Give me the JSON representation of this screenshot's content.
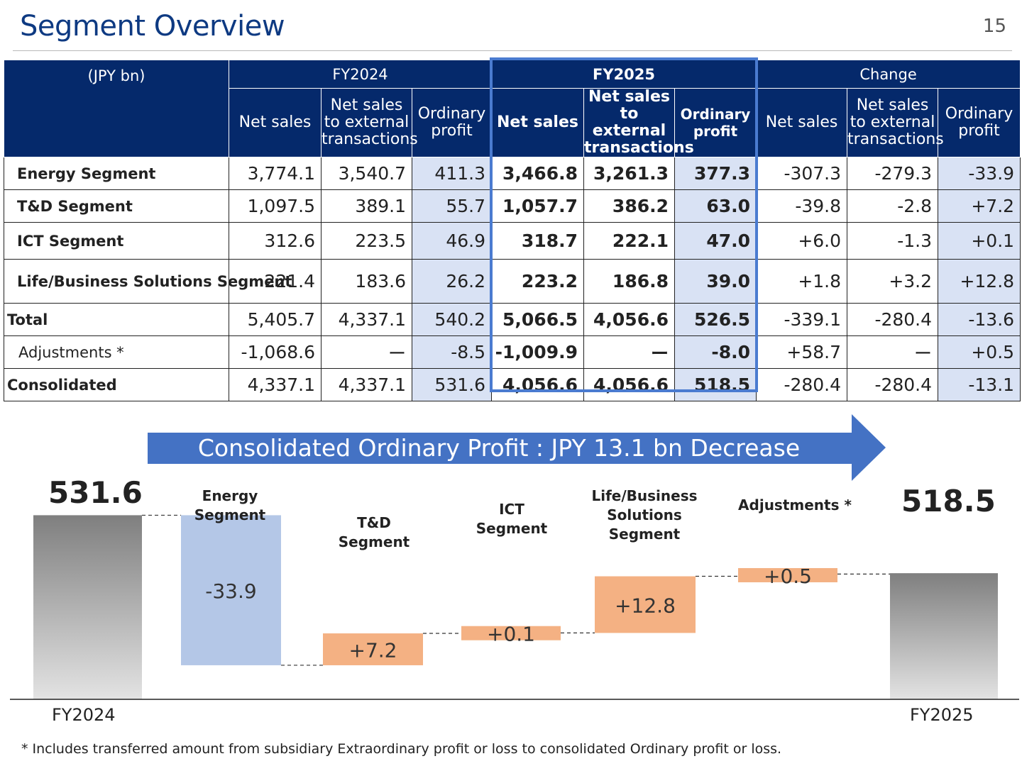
{
  "page": {
    "title": "Segment Overview",
    "page_number": "15"
  },
  "table": {
    "unit_label": "(JPY bn)",
    "groups": [
      "FY2024",
      "FY2025",
      "Change"
    ],
    "subheaders": [
      "Net sales",
      "Net sales to external transactions",
      "Ordinary profit"
    ],
    "rows": [
      {
        "label": "Energy Segment",
        "values": [
          "3,774.1",
          "3,540.7",
          "411.3",
          "3,466.8",
          "3,261.3",
          "377.3",
          "-307.3",
          "-279.3",
          "-33.9"
        ]
      },
      {
        "label": "T&D Segment",
        "values": [
          "1,097.5",
          "389.1",
          "55.7",
          "1,057.7",
          "386.2",
          "63.0",
          "-39.8",
          "-2.8",
          "+7.2"
        ]
      },
      {
        "label": "ICT Segment",
        "values": [
          "312.6",
          "223.5",
          "46.9",
          "318.7",
          "222.1",
          "47.0",
          "+6.0",
          "-1.3",
          "+0.1"
        ]
      },
      {
        "label": "Life/Business Solutions Segment",
        "values": [
          "221.4",
          "183.6",
          "26.2",
          "223.2",
          "186.8",
          "39.0",
          "+1.8",
          "+3.2",
          "+12.8"
        ]
      },
      {
        "label": "Total",
        "values": [
          "5,405.7",
          "4,337.1",
          "540.2",
          "5,066.5",
          "4,056.6",
          "526.5",
          "-339.1",
          "-280.4",
          "-13.6"
        ]
      },
      {
        "label": "Adjustments *",
        "values": [
          "-1,068.6",
          "ー",
          "-8.5",
          "-1,009.9",
          "ー",
          "-8.0",
          "+58.7",
          "ー",
          "+0.5"
        ]
      },
      {
        "label": "Consolidated",
        "values": [
          "4,337.1",
          "4,337.1",
          "531.6",
          "4,056.6",
          "4,056.6",
          "518.5",
          "-280.4",
          "-280.4",
          "-13.1"
        ]
      }
    ]
  },
  "banner": {
    "text": "Consolidated Ordinary Profit : JPY 13.1 bn Decrease"
  },
  "waterfall": {
    "start": {
      "label": "FY2024",
      "value": 531.6,
      "value_text": "531.6"
    },
    "end": {
      "label": "FY2025",
      "value": 518.5,
      "value_text": "518.5"
    },
    "steps": [
      {
        "label": "Energy Segment",
        "delta": -33.9,
        "delta_text": "-33.9",
        "color": "#b4c7e7"
      },
      {
        "label": "T&D Segment",
        "delta": 7.2,
        "delta_text": "+7.2",
        "color": "#f4b183"
      },
      {
        "label": "ICT Segment",
        "delta": 0.1,
        "delta_text": "+0.1",
        "color": "#f4b183"
      },
      {
        "label": "Life/Business Solutions Segment",
        "delta": 12.8,
        "delta_text": "+12.8",
        "color": "#f4b183"
      },
      {
        "label": "Adjustments *",
        "delta": 0.5,
        "delta_text": "+0.5",
        "color": "#f4b183"
      }
    ]
  },
  "footnote": "* Includes transferred amount from subsidiary Extraordinary profit or loss to consolidated Ordinary profit or loss.",
  "colors": {
    "header": "#05296b",
    "highlight": "#4a7bd0",
    "banner": "#4472c4",
    "op_cell": "#d9e2f4",
    "title": "#0e3a82"
  }
}
